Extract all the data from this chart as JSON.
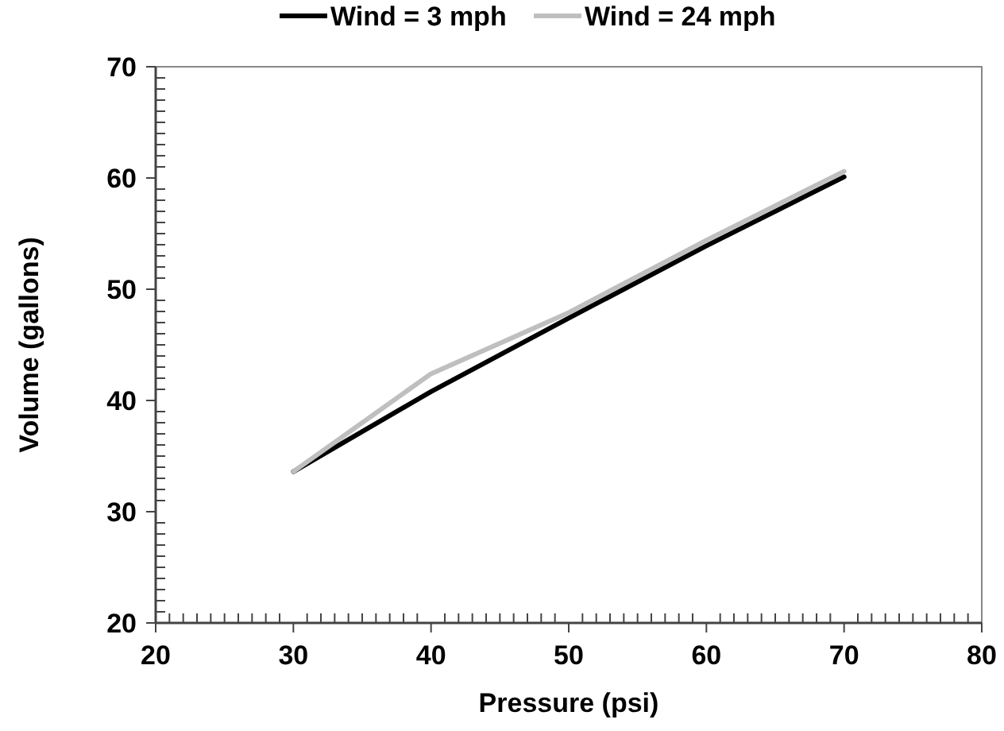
{
  "chart_data": {
    "type": "line",
    "xlabel": "Pressure (psi)",
    "ylabel": "Volume (gallons)",
    "x": [
      30,
      40,
      50,
      60,
      70
    ],
    "series": [
      {
        "name": "Wind = 3 mph",
        "color": "#000000",
        "values": [
          33.6,
          40.8,
          47.4,
          53.9,
          60.1
        ]
      },
      {
        "name": "Wind = 24 mph",
        "color": "#bfbfbf",
        "values": [
          33.6,
          42.4,
          47.9,
          54.4,
          60.6
        ]
      }
    ],
    "xlim": [
      20,
      80
    ],
    "ylim": [
      20,
      70
    ],
    "xticks": [
      20,
      {
        "value": 21,
        "label": null
      },
      {
        "value": 22,
        "label": null
      },
      {
        "value": 23,
        "label": null
      },
      {
        "value": 24,
        "label": null
      },
      {
        "value": 25,
        "label": null
      },
      {
        "value": 26,
        "label": null
      },
      {
        "value": 27,
        "label": null
      },
      {
        "value": 28,
        "label": null
      },
      {
        "value": 29,
        "label": null
      },
      30,
      {
        "value": 31,
        "label": null
      },
      {
        "value": 32,
        "label": null
      },
      {
        "value": 33,
        "label": null
      },
      {
        "value": 34,
        "label": null
      },
      {
        "value": 35,
        "label": null
      },
      {
        "value": 36,
        "label": null
      },
      {
        "value": 37,
        "label": null
      },
      {
        "value": 38,
        "label": null
      },
      {
        "value": 39,
        "label": null
      },
      40,
      {
        "value": 41,
        "label": null
      },
      {
        "value": 42,
        "label": null
      },
      {
        "value": 43,
        "label": null
      },
      {
        "value": 44,
        "label": null
      },
      {
        "value": 45,
        "label": null
      },
      {
        "value": 46,
        "label": null
      },
      {
        "value": 47,
        "label": null
      },
      {
        "value": 48,
        "label": null
      },
      {
        "value": 49,
        "label": null
      },
      50,
      {
        "value": 51,
        "label": null
      },
      {
        "value": 52,
        "label": null
      },
      {
        "value": 53,
        "label": null
      },
      {
        "value": 54,
        "label": null
      },
      {
        "value": 55,
        "label": null
      },
      {
        "value": 56,
        "label": null
      },
      {
        "value": 57,
        "label": null
      },
      {
        "value": 58,
        "label": null
      },
      {
        "value": 59,
        "label": null
      },
      60,
      {
        "value": 61,
        "label": null
      },
      {
        "value": 62,
        "label": null
      },
      {
        "value": 63,
        "label": null
      },
      {
        "value": 64,
        "label": null
      },
      {
        "value": 65,
        "label": null
      },
      {
        "value": 66,
        "label": null
      },
      {
        "value": 67,
        "label": null
      },
      {
        "value": 68,
        "label": null
      },
      {
        "value": 69,
        "label": null
      },
      70,
      {
        "value": 71,
        "label": null
      },
      {
        "value": 72,
        "label": null
      },
      {
        "value": 73,
        "label": null
      },
      {
        "value": 74,
        "label": null
      },
      {
        "value": 75,
        "label": null
      },
      {
        "value": 76,
        "label": null
      },
      {
        "value": 77,
        "label": null
      },
      {
        "value": 78,
        "label": null
      },
      {
        "value": 79,
        "label": null
      },
      80
    ],
    "yticks": [
      20,
      {
        "value": 21,
        "label": null
      },
      {
        "value": 22,
        "label": null
      },
      {
        "value": 23,
        "label": null
      },
      {
        "value": 24,
        "label": null
      },
      {
        "value": 25,
        "label": null
      },
      {
        "value": 26,
        "label": null
      },
      {
        "value": 27,
        "label": null
      },
      {
        "value": 28,
        "label": null
      },
      {
        "value": 29,
        "label": null
      },
      30,
      {
        "value": 31,
        "label": null
      },
      {
        "value": 32,
        "label": null
      },
      {
        "value": 33,
        "label": null
      },
      {
        "value": 34,
        "label": null
      },
      {
        "value": 35,
        "label": null
      },
      {
        "value": 36,
        "label": null
      },
      {
        "value": 37,
        "label": null
      },
      {
        "value": 38,
        "label": null
      },
      {
        "value": 39,
        "label": null
      },
      40,
      {
        "value": 41,
        "label": null
      },
      {
        "value": 42,
        "label": null
      },
      {
        "value": 43,
        "label": null
      },
      {
        "value": 44,
        "label": null
      },
      {
        "value": 45,
        "label": null
      },
      {
        "value": 46,
        "label": null
      },
      {
        "value": 47,
        "label": null
      },
      {
        "value": 48,
        "label": null
      },
      {
        "value": 49,
        "label": null
      },
      50,
      {
        "value": 51,
        "label": null
      },
      {
        "value": 52,
        "label": null
      },
      {
        "value": 53,
        "label": null
      },
      {
        "value": 54,
        "label": null
      },
      {
        "value": 55,
        "label": null
      },
      {
        "value": 56,
        "label": null
      },
      {
        "value": 57,
        "label": null
      },
      {
        "value": 58,
        "label": null
      },
      {
        "value": 59,
        "label": null
      },
      60,
      {
        "value": 61,
        "label": null
      },
      {
        "value": 62,
        "label": null
      },
      {
        "value": 63,
        "label": null
      },
      {
        "value": 64,
        "label": null
      },
      {
        "value": 65,
        "label": null
      },
      {
        "value": 66,
        "label": null
      },
      {
        "value": 67,
        "label": null
      },
      {
        "value": 68,
        "label": null
      },
      {
        "value": 69,
        "label": null
      },
      70
    ],
    "legend": "top",
    "line_style": "solid",
    "marker": "none",
    "grid": false
  }
}
